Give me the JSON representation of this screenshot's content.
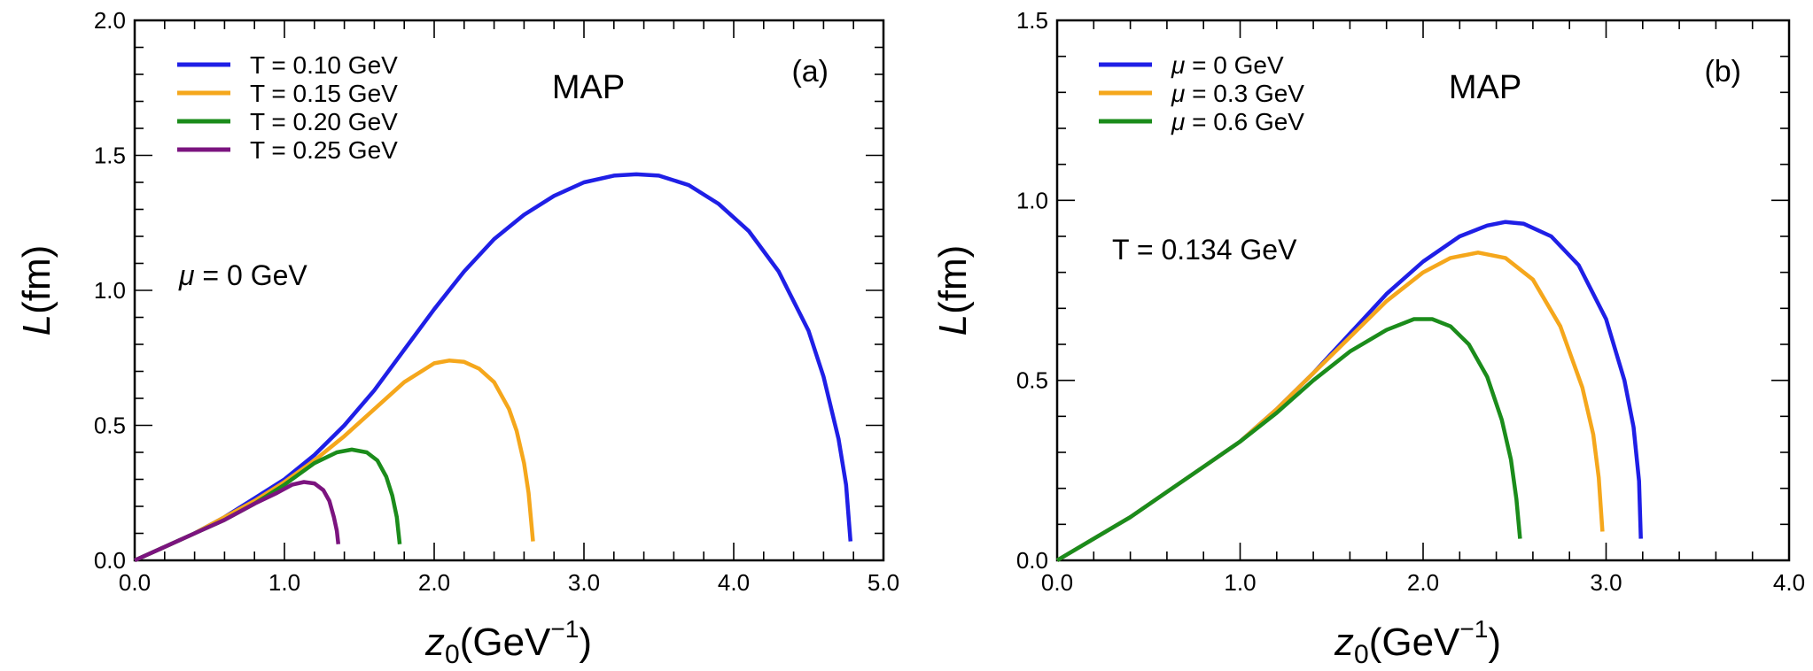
{
  "chart_data": [
    {
      "type": "line",
      "panel": "(a)",
      "model": "MAP",
      "annotation": {
        "symbol": "μ",
        "text": " = 0 GeV"
      },
      "xlabel": {
        "main": "z",
        "sub": "0",
        "unit": "(GeV",
        "sup": "−1",
        "close": ")"
      },
      "ylabel": {
        "main": "L",
        "unit": "(fm)"
      },
      "xlim": [
        0,
        5
      ],
      "ylim": [
        0,
        2
      ],
      "xticks": [
        "0.0",
        "1.0",
        "2.0",
        "3.0",
        "4.0",
        "5.0"
      ],
      "yticks": [
        "0.0",
        "0.5",
        "1.0",
        "1.5",
        "2.0"
      ],
      "xminor_step": 0.2,
      "yminor_step": 0.1,
      "legend_position": "top-left",
      "series": [
        {
          "name": "T = 0.10 GeV",
          "color": "#1f1fe6",
          "x": [
            0.0,
            0.2,
            0.4,
            0.6,
            0.8,
            1.0,
            1.2,
            1.4,
            1.6,
            1.8,
            2.0,
            2.2,
            2.4,
            2.6,
            2.8,
            3.0,
            3.2,
            3.35,
            3.5,
            3.7,
            3.9,
            4.1,
            4.3,
            4.5,
            4.6,
            4.7,
            4.75,
            4.78
          ],
          "y": [
            0.0,
            0.05,
            0.1,
            0.16,
            0.23,
            0.3,
            0.39,
            0.5,
            0.63,
            0.78,
            0.93,
            1.07,
            1.19,
            1.28,
            1.35,
            1.4,
            1.425,
            1.43,
            1.425,
            1.39,
            1.32,
            1.22,
            1.07,
            0.85,
            0.68,
            0.45,
            0.28,
            0.07
          ]
        },
        {
          "name": "T = 0.15 GeV",
          "color": "#f5a71c",
          "x": [
            0.0,
            0.2,
            0.4,
            0.6,
            0.8,
            1.0,
            1.2,
            1.4,
            1.6,
            1.8,
            2.0,
            2.1,
            2.2,
            2.3,
            2.4,
            2.5,
            2.55,
            2.6,
            2.63,
            2.66
          ],
          "y": [
            0.0,
            0.05,
            0.1,
            0.16,
            0.22,
            0.29,
            0.37,
            0.46,
            0.56,
            0.66,
            0.73,
            0.74,
            0.735,
            0.71,
            0.66,
            0.56,
            0.48,
            0.36,
            0.25,
            0.07
          ]
        },
        {
          "name": "T = 0.20 GeV",
          "color": "#1b8c1b",
          "x": [
            0.0,
            0.2,
            0.4,
            0.6,
            0.8,
            1.0,
            1.2,
            1.35,
            1.45,
            1.55,
            1.62,
            1.68,
            1.72,
            1.75,
            1.77
          ],
          "y": [
            0.0,
            0.05,
            0.1,
            0.15,
            0.21,
            0.28,
            0.36,
            0.4,
            0.41,
            0.4,
            0.37,
            0.31,
            0.24,
            0.16,
            0.06
          ]
        },
        {
          "name": "T = 0.25 GeV",
          "color": "#7b147f",
          "x": [
            0.0,
            0.2,
            0.4,
            0.6,
            0.8,
            0.95,
            1.05,
            1.13,
            1.2,
            1.26,
            1.3,
            1.33,
            1.35,
            1.36
          ],
          "y": [
            0.0,
            0.05,
            0.1,
            0.15,
            0.21,
            0.25,
            0.28,
            0.29,
            0.285,
            0.26,
            0.22,
            0.16,
            0.11,
            0.06
          ]
        }
      ]
    },
    {
      "type": "line",
      "panel": "(b)",
      "model": "MAP",
      "annotation": {
        "symbol": "",
        "text": "T = 0.134 GeV"
      },
      "xlabel": {
        "main": "z",
        "sub": "0",
        "unit": "(GeV",
        "sup": "−1",
        "close": ")"
      },
      "ylabel": {
        "main": "L",
        "unit": "(fm)"
      },
      "xlim": [
        0,
        4
      ],
      "ylim": [
        0,
        1.5
      ],
      "xticks": [
        "0.0",
        "1.0",
        "2.0",
        "3.0",
        "4.0"
      ],
      "yticks": [
        "0.0",
        "0.5",
        "1.0",
        "1.5"
      ],
      "xminor_step": 0.2,
      "yminor_step": 0.1,
      "legend_position": "top-left",
      "series": [
        {
          "name": "μ = 0 GeV",
          "color": "#1f1fe6",
          "x": [
            0.0,
            0.2,
            0.4,
            0.6,
            0.8,
            1.0,
            1.2,
            1.4,
            1.6,
            1.8,
            2.0,
            2.2,
            2.35,
            2.45,
            2.55,
            2.7,
            2.85,
            3.0,
            3.1,
            3.15,
            3.18,
            3.19
          ],
          "y": [
            0.0,
            0.06,
            0.12,
            0.19,
            0.26,
            0.33,
            0.42,
            0.52,
            0.63,
            0.74,
            0.83,
            0.9,
            0.93,
            0.94,
            0.935,
            0.9,
            0.82,
            0.67,
            0.5,
            0.37,
            0.22,
            0.06
          ]
        },
        {
          "name": "μ = 0.3 GeV",
          "color": "#f5a71c",
          "x": [
            0.0,
            0.2,
            0.4,
            0.6,
            0.8,
            1.0,
            1.2,
            1.4,
            1.6,
            1.8,
            2.0,
            2.15,
            2.3,
            2.45,
            2.6,
            2.75,
            2.87,
            2.93,
            2.96,
            2.98
          ],
          "y": [
            0.0,
            0.06,
            0.12,
            0.19,
            0.26,
            0.33,
            0.42,
            0.52,
            0.62,
            0.72,
            0.8,
            0.84,
            0.855,
            0.84,
            0.78,
            0.65,
            0.48,
            0.35,
            0.23,
            0.08
          ]
        },
        {
          "name": "μ = 0.6 GeV",
          "color": "#1b8c1b",
          "x": [
            0.0,
            0.2,
            0.4,
            0.6,
            0.8,
            1.0,
            1.2,
            1.4,
            1.6,
            1.8,
            1.95,
            2.05,
            2.15,
            2.25,
            2.35,
            2.43,
            2.48,
            2.51,
            2.53
          ],
          "y": [
            0.0,
            0.06,
            0.12,
            0.19,
            0.26,
            0.33,
            0.41,
            0.5,
            0.58,
            0.64,
            0.67,
            0.67,
            0.65,
            0.6,
            0.51,
            0.39,
            0.28,
            0.17,
            0.06
          ]
        }
      ]
    }
  ]
}
